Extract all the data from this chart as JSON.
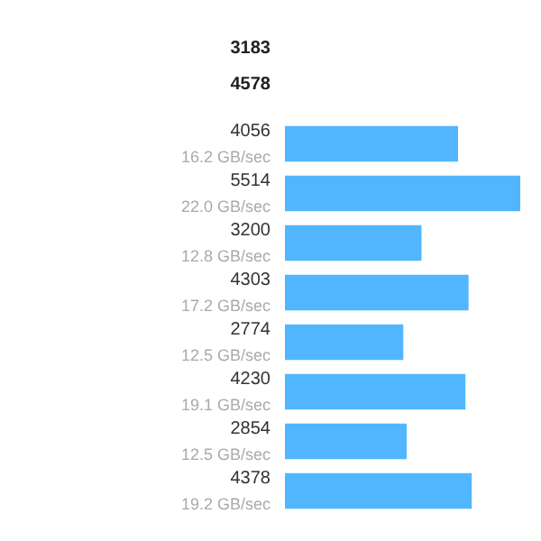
{
  "chart_data": {
    "type": "bar",
    "orientation": "horizontal",
    "annotations": [
      "3183",
      "4578"
    ],
    "categories": [
      "16.2 GB/sec",
      "22.0 GB/sec",
      "12.8 GB/sec",
      "17.2 GB/sec",
      "12.5 GB/sec",
      "19.1 GB/sec",
      "12.5 GB/sec",
      "19.2 GB/sec"
    ],
    "values": [
      4056,
      5514,
      3200,
      4303,
      2774,
      4230,
      2854,
      4378
    ],
    "color": "#52b6fe",
    "data_labels": true,
    "grid": false
  }
}
